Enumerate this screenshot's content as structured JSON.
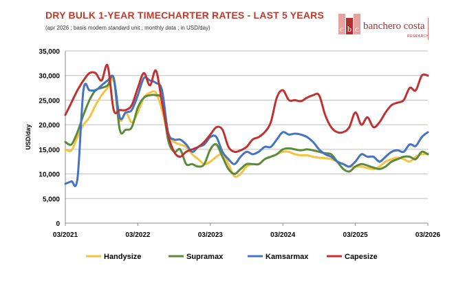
{
  "header": {
    "title": "DRY BULK 1-YEAR TIMECHARTER RATES - LAST 5 YEARS",
    "subtitle": "(apr 2026 ; basis modern standard unit ; monthly data ; in USD/day)"
  },
  "logo": {
    "name": "banchero costa",
    "sub": "RESEARCH",
    "colors": {
      "red": "#b03030",
      "light": "#e8a0a0"
    }
  },
  "chart_data": {
    "type": "line",
    "title": "DRY BULK 1-YEAR TIMECHARTER RATES - LAST 5 YEARS",
    "ylabel": "USD/day",
    "xlabel": "",
    "ylim": [
      0,
      35000
    ],
    "yticks": [
      0,
      5000,
      10000,
      15000,
      20000,
      25000,
      30000,
      35000
    ],
    "ytick_labels": [
      "0",
      "5,000",
      "10,000",
      "15,000",
      "20,000",
      "25,000",
      "30,000",
      "35,000"
    ],
    "xticks": [
      "03/2021",
      "03/2022",
      "03/2023",
      "03/2024",
      "03/2025",
      "03/2026"
    ],
    "grid": true,
    "legend": "bottom",
    "x": [
      "2021-03",
      "2021-04",
      "2021-05",
      "2021-06",
      "2021-07",
      "2021-08",
      "2021-09",
      "2021-10",
      "2021-11",
      "2021-12",
      "2022-01",
      "2022-02",
      "2022-03",
      "2022-04",
      "2022-05",
      "2022-06",
      "2022-07",
      "2022-08",
      "2022-09",
      "2022-10",
      "2022-11",
      "2022-12",
      "2023-01",
      "2023-02",
      "2023-03",
      "2023-04",
      "2023-05",
      "2023-06",
      "2023-07",
      "2023-08",
      "2023-09",
      "2023-10",
      "2023-11",
      "2023-12",
      "2024-01",
      "2024-02",
      "2024-03",
      "2024-04",
      "2024-05",
      "2024-06",
      "2024-07",
      "2024-08",
      "2024-09",
      "2024-10",
      "2024-11",
      "2024-12",
      "2025-01",
      "2025-02",
      "2025-03",
      "2025-04",
      "2025-05",
      "2025-06",
      "2025-07",
      "2025-08",
      "2025-09",
      "2025-10",
      "2025-11",
      "2025-12",
      "2026-01",
      "2026-02",
      "2026-03"
    ],
    "series": [
      {
        "name": "Handysize",
        "color": "#f5c242",
        "values": [
          15000,
          14800,
          17500,
          20000,
          21500,
          24000,
          26000,
          27500,
          29000,
          21000,
          22500,
          20500,
          22500,
          25500,
          26500,
          26500,
          23000,
          18000,
          16500,
          16000,
          15500,
          14000,
          13000,
          12000,
          12500,
          13500,
          14000,
          12000,
          9500,
          10000,
          11500,
          12000,
          12000,
          13000,
          13500,
          14000,
          14500,
          14500,
          14000,
          13800,
          13800,
          13500,
          13300,
          13200,
          13000,
          12500,
          12000,
          11500,
          11500,
          11500,
          11200,
          11000,
          11500,
          12500,
          13000,
          13300,
          13000,
          12500,
          13500,
          14000,
          14000
        ]
      },
      {
        "name": "Supramax",
        "color": "#5b8a3a",
        "values": [
          16500,
          16000,
          18500,
          22000,
          25000,
          27000,
          27500,
          28000,
          29500,
          19000,
          19000,
          19500,
          23500,
          25500,
          26000,
          26000,
          25000,
          17000,
          14500,
          15000,
          12000,
          12000,
          11500,
          12000,
          15000,
          16000,
          13500,
          11000,
          10000,
          11000,
          12000,
          12000,
          12000,
          13000,
          13500,
          14000,
          15000,
          15200,
          15000,
          14800,
          15000,
          14800,
          14500,
          14200,
          14000,
          12500,
          11000,
          10500,
          11500,
          12000,
          11700,
          11300,
          11000,
          11500,
          12500,
          13000,
          13500,
          13500,
          13000,
          14500,
          14000
        ]
      },
      {
        "name": "Kamsarmax",
        "color": "#4472c4",
        "values": [
          8000,
          8500,
          9000,
          27000,
          27000,
          27000,
          28000,
          29000,
          29500,
          21500,
          22500,
          23000,
          26000,
          29500,
          29000,
          28500,
          27000,
          18500,
          17000,
          17000,
          16000,
          14500,
          15500,
          16000,
          17500,
          17500,
          14500,
          13000,
          12000,
          13500,
          14500,
          14000,
          14500,
          15500,
          15500,
          17000,
          18500,
          18000,
          18200,
          18000,
          17500,
          16500,
          15000,
          14000,
          13500,
          12500,
          12000,
          11500,
          12500,
          14000,
          13500,
          13500,
          12500,
          13500,
          14500,
          14800,
          14500,
          16000,
          15700,
          17500,
          18500
        ]
      },
      {
        "name": "Capesize",
        "color": "#c0312f",
        "values": [
          22000,
          24500,
          27000,
          29000,
          30500,
          30500,
          29000,
          32000,
          23000,
          23000,
          23000,
          24000,
          27500,
          30500,
          28000,
          31000,
          24500,
          18000,
          14500,
          13500,
          14500,
          15000,
          15500,
          16500,
          18000,
          19500,
          19000,
          15500,
          14500,
          14800,
          15500,
          17000,
          17500,
          18500,
          20500,
          25500,
          27000,
          25000,
          25000,
          24800,
          25500,
          26000,
          26000,
          22000,
          19500,
          18500,
          18500,
          19500,
          22500,
          20000,
          21500,
          19500,
          20500,
          22500,
          24000,
          24500,
          25000,
          27500,
          27000,
          30000,
          30000
        ]
      }
    ]
  }
}
